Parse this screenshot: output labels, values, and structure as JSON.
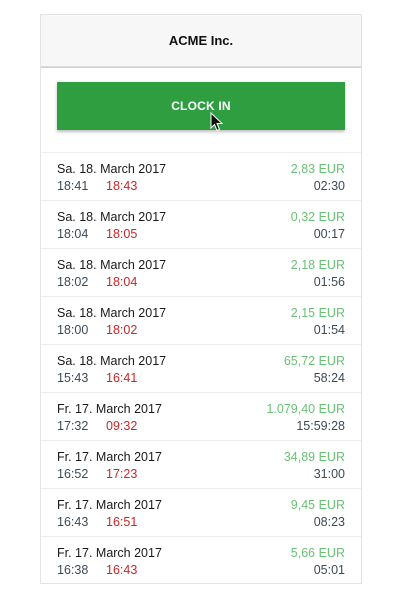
{
  "header": {
    "title": "ACME Inc."
  },
  "clock_button": {
    "label": "CLOCK IN"
  },
  "entries": [
    {
      "date": "Sa. 18. March 2017",
      "in": "18:41",
      "out": "18:43",
      "amount": "2,83 EUR",
      "duration": "02:30"
    },
    {
      "date": "Sa. 18. March 2017",
      "in": "18:04",
      "out": "18:05",
      "amount": "0,32 EUR",
      "duration": "00:17"
    },
    {
      "date": "Sa. 18. March 2017",
      "in": "18:02",
      "out": "18:04",
      "amount": "2,18 EUR",
      "duration": "01:56"
    },
    {
      "date": "Sa. 18. March 2017",
      "in": "18:00",
      "out": "18:02",
      "amount": "2,15 EUR",
      "duration": "01:54"
    },
    {
      "date": "Sa. 18. March 2017",
      "in": "15:43",
      "out": "16:41",
      "amount": "65,72 EUR",
      "duration": "58:24"
    },
    {
      "date": "Fr. 17. March 2017",
      "in": "17:32",
      "out": "09:32",
      "amount": "1.079,40 EUR",
      "duration": "15:59:28"
    },
    {
      "date": "Fr. 17. March 2017",
      "in": "16:52",
      "out": "17:23",
      "amount": "34,89 EUR",
      "duration": "31:00"
    },
    {
      "date": "Fr. 17. March 2017",
      "in": "16:43",
      "out": "16:51",
      "amount": "9,45 EUR",
      "duration": "08:23"
    },
    {
      "date": "Fr. 17. March 2017",
      "in": "16:38",
      "out": "16:43",
      "amount": "5,66 EUR",
      "duration": "05:01"
    }
  ],
  "colors": {
    "button": "#2e9e41",
    "amount": "#6ac174",
    "clock_out": "#c62828",
    "clock_in": "#3c4a57"
  },
  "icons": {
    "cursor": "mouse-pointer-icon"
  }
}
